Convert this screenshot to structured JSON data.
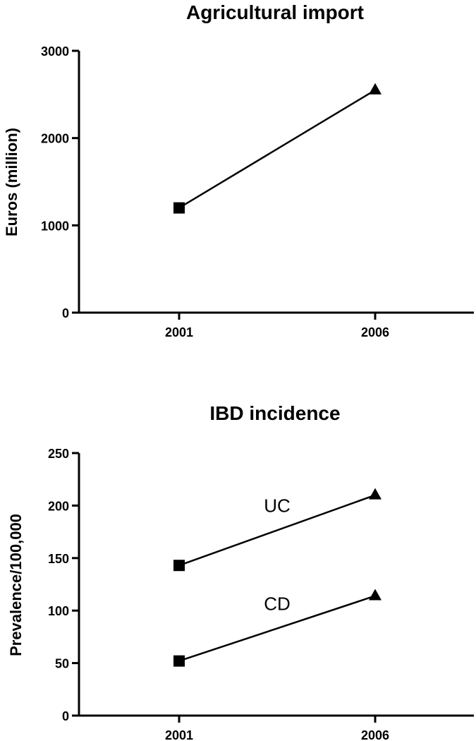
{
  "chart_data": [
    {
      "type": "line",
      "title": "Agricultural import",
      "xlabel": "",
      "ylabel": "Euros (million)",
      "categories": [
        "2001",
        "2006"
      ],
      "ylim": [
        0,
        3000
      ],
      "yticks": [
        0,
        1000,
        2000,
        3000
      ],
      "grid": false,
      "series": [
        {
          "values": [
            1200,
            2550
          ],
          "markers": [
            "square",
            "triangle"
          ]
        }
      ]
    },
    {
      "type": "line",
      "title": "IBD incidence",
      "xlabel": "",
      "ylabel": "Prevalence/100,000",
      "categories": [
        "2001",
        "2006"
      ],
      "ylim": [
        0,
        250
      ],
      "yticks": [
        0,
        50,
        100,
        150,
        200,
        250
      ],
      "grid": false,
      "series": [
        {
          "name": "UC",
          "values": [
            143,
            210
          ],
          "markers": [
            "square",
            "triangle"
          ]
        },
        {
          "name": "CD",
          "values": [
            52,
            114
          ],
          "markers": [
            "square",
            "triangle"
          ]
        }
      ]
    }
  ]
}
